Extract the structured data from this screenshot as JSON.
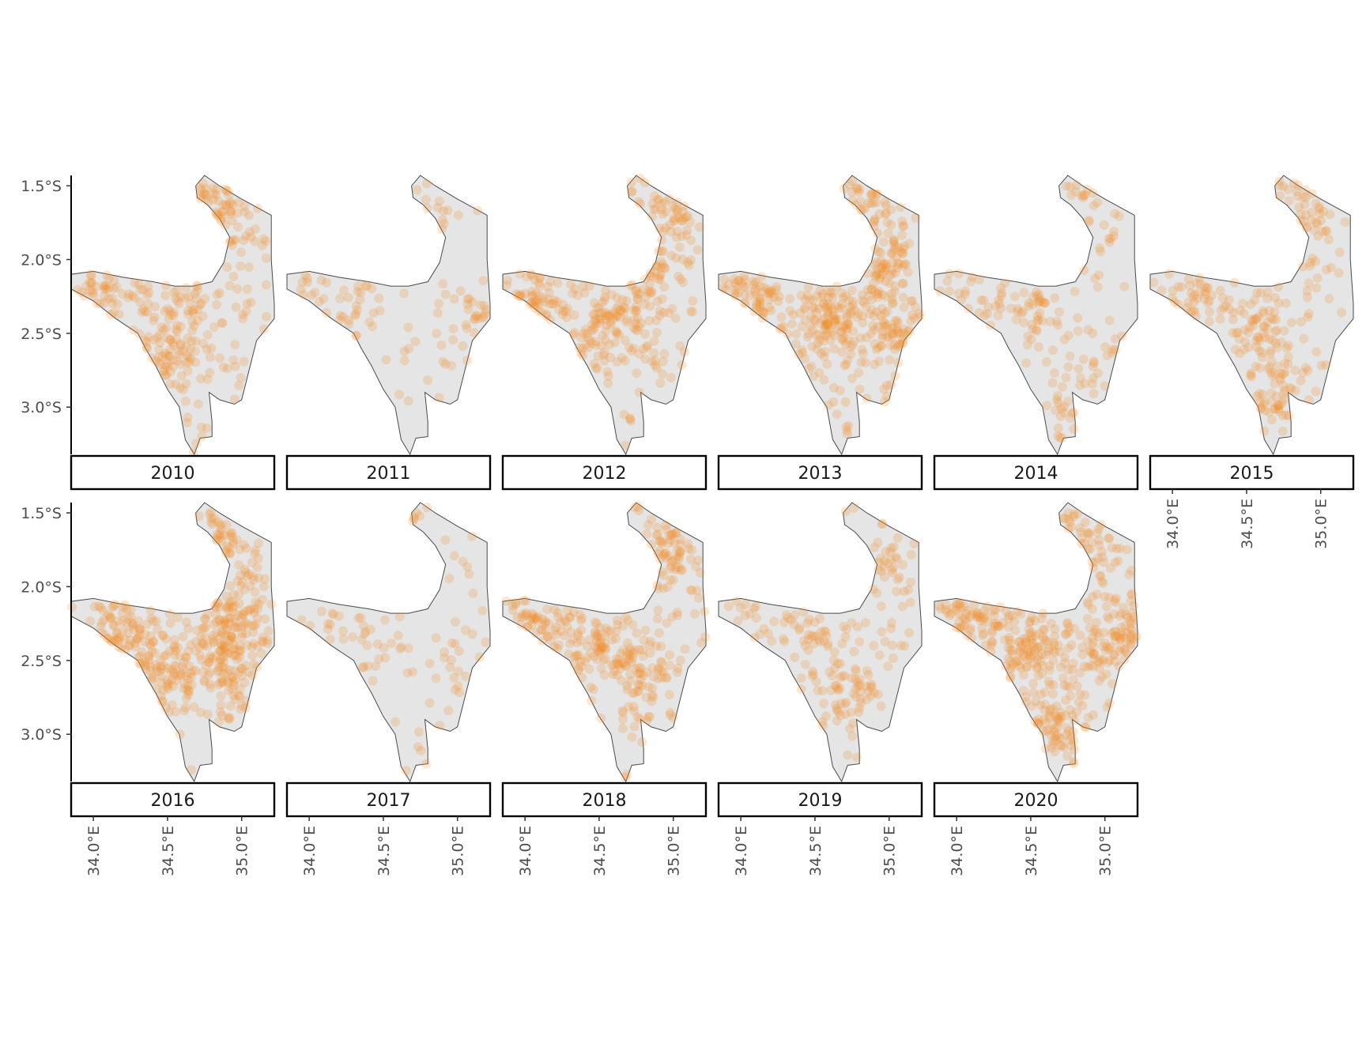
{
  "chart_data": {
    "type": "scatter",
    "title": "",
    "xlabel": "",
    "ylabel": "",
    "xlim": [
      33.85,
      35.22
    ],
    "ylim": [
      -3.32,
      -1.43
    ],
    "x_ticks": [
      {
        "value": 34.0,
        "label": "34.0°E"
      },
      {
        "value": 34.5,
        "label": "34.5°E"
      },
      {
        "value": 35.0,
        "label": "35.0°E"
      }
    ],
    "y_ticks": [
      {
        "value": -1.5,
        "label": "1.5°S"
      },
      {
        "value": -2.0,
        "label": "2.0°S"
      },
      {
        "value": -2.5,
        "label": "2.5°S"
      },
      {
        "value": -3.0,
        "label": "3.0°S"
      }
    ],
    "point_color": "#f28e2b",
    "region_fill": "#e5e5e5",
    "region_outline": [
      [
        34.75,
        -1.43
      ],
      [
        34.85,
        -1.5
      ],
      [
        35.0,
        -1.59
      ],
      [
        35.2,
        -1.7
      ],
      [
        35.2,
        -2.0
      ],
      [
        35.22,
        -2.3
      ],
      [
        35.22,
        -2.4
      ],
      [
        35.1,
        -2.55
      ],
      [
        35.05,
        -2.75
      ],
      [
        35.0,
        -2.95
      ],
      [
        34.95,
        -2.98
      ],
      [
        34.85,
        -2.95
      ],
      [
        34.78,
        -2.9
      ],
      [
        34.8,
        -3.1
      ],
      [
        34.8,
        -3.2
      ],
      [
        34.72,
        -3.21
      ],
      [
        34.68,
        -3.32
      ],
      [
        34.62,
        -3.22
      ],
      [
        34.58,
        -3.0
      ],
      [
        34.5,
        -2.88
      ],
      [
        34.42,
        -2.72
      ],
      [
        34.35,
        -2.6
      ],
      [
        34.3,
        -2.5
      ],
      [
        34.15,
        -2.4
      ],
      [
        34.0,
        -2.28
      ],
      [
        33.85,
        -2.2
      ],
      [
        33.85,
        -2.1
      ],
      [
        34.0,
        -2.08
      ],
      [
        34.2,
        -2.12
      ],
      [
        34.4,
        -2.15
      ],
      [
        34.55,
        -2.18
      ],
      [
        34.67,
        -2.18
      ],
      [
        34.8,
        -2.15
      ],
      [
        34.88,
        -2.02
      ],
      [
        34.92,
        -1.85
      ],
      [
        34.85,
        -1.72
      ],
      [
        34.77,
        -1.63
      ],
      [
        34.7,
        -1.58
      ],
      [
        34.69,
        -1.5
      ]
    ],
    "facets": [
      {
        "label": "2010",
        "density": 1.0,
        "clusters": [
          [
            34.05,
            -2.25
          ],
          [
            34.5,
            -2.65
          ],
          [
            34.55,
            -2.3
          ],
          [
            34.9,
            -1.75
          ],
          [
            34.78,
            -1.5
          ]
        ]
      },
      {
        "label": "2011",
        "density": 0.35,
        "clusters": [
          [
            33.92,
            -2.12
          ],
          [
            34.3,
            -2.35
          ],
          [
            34.8,
            -1.55
          ],
          [
            35.1,
            -2.4
          ]
        ]
      },
      {
        "label": "2012",
        "density": 1.1,
        "clusters": [
          [
            34.1,
            -2.25
          ],
          [
            34.7,
            -2.35
          ],
          [
            34.95,
            -1.65
          ],
          [
            34.45,
            -2.55
          ],
          [
            34.85,
            -2.05
          ]
        ]
      },
      {
        "label": "2013",
        "density": 1.5,
        "clusters": [
          [
            34.1,
            -2.25
          ],
          [
            35.05,
            -2.5
          ],
          [
            34.85,
            -1.55
          ],
          [
            34.6,
            -2.4
          ],
          [
            34.95,
            -2.05
          ]
        ]
      },
      {
        "label": "2014",
        "density": 0.55,
        "clusters": [
          [
            34.0,
            -2.2
          ],
          [
            34.5,
            -2.35
          ],
          [
            34.95,
            -2.65
          ],
          [
            34.82,
            -1.5
          ],
          [
            34.75,
            -3.1
          ]
        ]
      },
      {
        "label": "2015",
        "density": 0.85,
        "clusters": [
          [
            34.15,
            -2.25
          ],
          [
            34.6,
            -2.45
          ],
          [
            34.85,
            -1.7
          ],
          [
            34.7,
            -2.95
          ]
        ]
      },
      {
        "label": "2016",
        "density": 1.6,
        "clusters": [
          [
            34.2,
            -2.3
          ],
          [
            34.9,
            -2.55
          ],
          [
            34.85,
            -1.7
          ],
          [
            34.5,
            -2.55
          ],
          [
            34.95,
            -2.2
          ]
        ]
      },
      {
        "label": "2017",
        "density": 0.3,
        "clusters": [
          [
            34.5,
            -2.4
          ],
          [
            34.8,
            -1.55
          ],
          [
            35.05,
            -2.55
          ],
          [
            34.25,
            -2.25
          ]
        ]
      },
      {
        "label": "2018",
        "density": 1.15,
        "clusters": [
          [
            34.1,
            -2.2
          ],
          [
            34.75,
            -2.55
          ],
          [
            34.95,
            -1.8
          ],
          [
            34.5,
            -2.4
          ]
        ]
      },
      {
        "label": "2019",
        "density": 0.65,
        "clusters": [
          [
            34.7,
            -2.7
          ],
          [
            34.0,
            -2.2
          ],
          [
            35.0,
            -1.85
          ],
          [
            34.5,
            -2.35
          ]
        ]
      },
      {
        "label": "2020",
        "density": 1.55,
        "clusters": [
          [
            34.5,
            -2.4
          ],
          [
            35.05,
            -2.4
          ],
          [
            34.7,
            -2.95
          ],
          [
            34.85,
            -1.7
          ],
          [
            34.1,
            -2.2
          ]
        ]
      }
    ]
  }
}
